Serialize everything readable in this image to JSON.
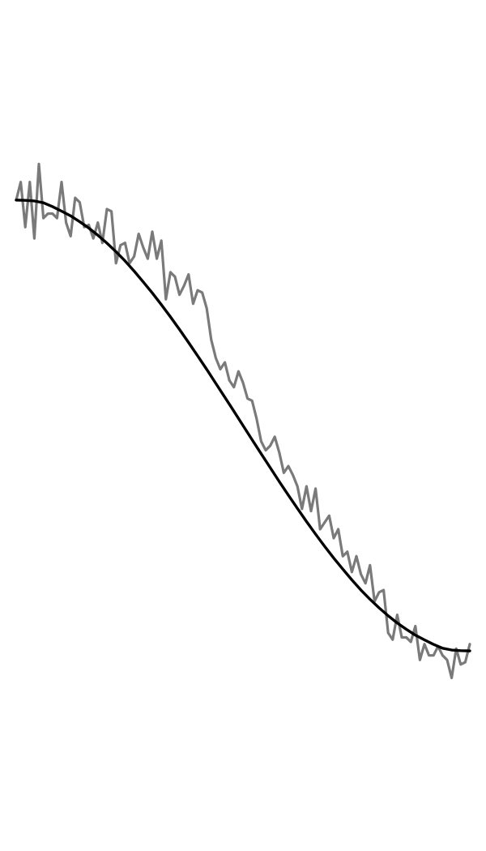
{
  "chart_data": {
    "type": "line",
    "title": "",
    "xlabel": "",
    "ylabel": "",
    "grid": false,
    "axes_visible": false,
    "xlim": [
      0,
      100
    ],
    "ylim": [
      -1.6,
      1.6
    ],
    "series": [
      {
        "style": "noisy",
        "color": "#7a7a7a",
        "x": [
          0,
          1,
          2,
          3,
          4,
          5,
          6,
          7,
          8,
          9,
          10,
          11,
          12,
          13,
          14,
          15,
          16,
          17,
          18,
          19,
          20,
          21,
          22,
          23,
          24,
          25,
          26,
          27,
          28,
          29,
          30,
          31,
          32,
          33,
          34,
          35,
          36,
          37,
          38,
          39,
          40,
          41,
          42,
          43,
          44,
          45,
          46,
          47,
          48,
          49,
          50,
          51,
          52,
          53,
          54,
          55,
          56,
          57,
          58,
          59,
          60,
          61,
          62,
          63,
          64,
          65,
          66,
          67,
          68,
          69,
          70,
          71,
          72,
          73,
          74,
          75,
          76,
          77,
          78,
          79,
          80,
          81,
          82,
          83,
          84,
          85,
          86,
          87,
          88,
          89,
          90,
          91,
          92,
          93,
          94,
          95,
          96,
          97,
          98,
          99,
          100
        ],
        "y": [
          1.0,
          1.08,
          0.88,
          1.08,
          0.83,
          1.16,
          0.92,
          0.94,
          0.94,
          0.92,
          1.08,
          0.9,
          0.84,
          1.01,
          0.99,
          0.88,
          0.89,
          0.83,
          0.9,
          0.81,
          0.96,
          0.95,
          0.72,
          0.8,
          0.81,
          0.72,
          0.75,
          0.85,
          0.79,
          0.74,
          0.86,
          0.74,
          0.82,
          0.56,
          0.68,
          0.66,
          0.58,
          0.62,
          0.67,
          0.54,
          0.6,
          0.59,
          0.52,
          0.38,
          0.3,
          0.25,
          0.28,
          0.2,
          0.17,
          0.24,
          0.19,
          0.12,
          0.11,
          0.03,
          -0.07,
          -0.11,
          -0.09,
          -0.05,
          -0.12,
          -0.21,
          -0.18,
          -0.22,
          -0.27,
          -0.37,
          -0.27,
          -0.38,
          -0.28,
          -0.46,
          -0.43,
          -0.4,
          -0.5,
          -0.46,
          -0.58,
          -0.56,
          -0.65,
          -0.58,
          -0.66,
          -0.7,
          -0.62,
          -0.78,
          -0.74,
          -0.73,
          -0.92,
          -0.95,
          -0.84,
          -0.94,
          -0.94,
          -0.96,
          -0.89,
          -1.04,
          -0.97,
          -1.02,
          -1.02,
          -0.98,
          -1.02,
          -1.04,
          -1.12,
          -0.99,
          -1.06,
          -1.05,
          -0.97
        ]
      },
      {
        "style": "smooth",
        "color": "#000000",
        "x": [
          0,
          2,
          4,
          6,
          8,
          10,
          12,
          14,
          16,
          18,
          20,
          22,
          24,
          26,
          28,
          30,
          32,
          34,
          36,
          38,
          40,
          42,
          44,
          46,
          48,
          50,
          52,
          54,
          56,
          58,
          60,
          62,
          64,
          66,
          68,
          70,
          72,
          74,
          76,
          78,
          80,
          82,
          84,
          86,
          88,
          90,
          92,
          94,
          96,
          98,
          100
        ],
        "y": [
          1.0,
          0.999,
          0.996,
          0.988,
          0.971,
          0.951,
          0.93,
          0.904,
          0.876,
          0.844,
          0.809,
          0.771,
          0.73,
          0.685,
          0.637,
          0.588,
          0.536,
          0.482,
          0.426,
          0.368,
          0.309,
          0.249,
          0.187,
          0.125,
          0.063,
          0.0,
          -0.063,
          -0.125,
          -0.187,
          -0.249,
          -0.309,
          -0.368,
          -0.426,
          -0.482,
          -0.536,
          -0.588,
          -0.637,
          -0.685,
          -0.73,
          -0.771,
          -0.809,
          -0.844,
          -0.876,
          -0.904,
          -0.93,
          -0.951,
          -0.971,
          -0.988,
          -0.996,
          -0.999,
          -1.0
        ]
      }
    ]
  }
}
